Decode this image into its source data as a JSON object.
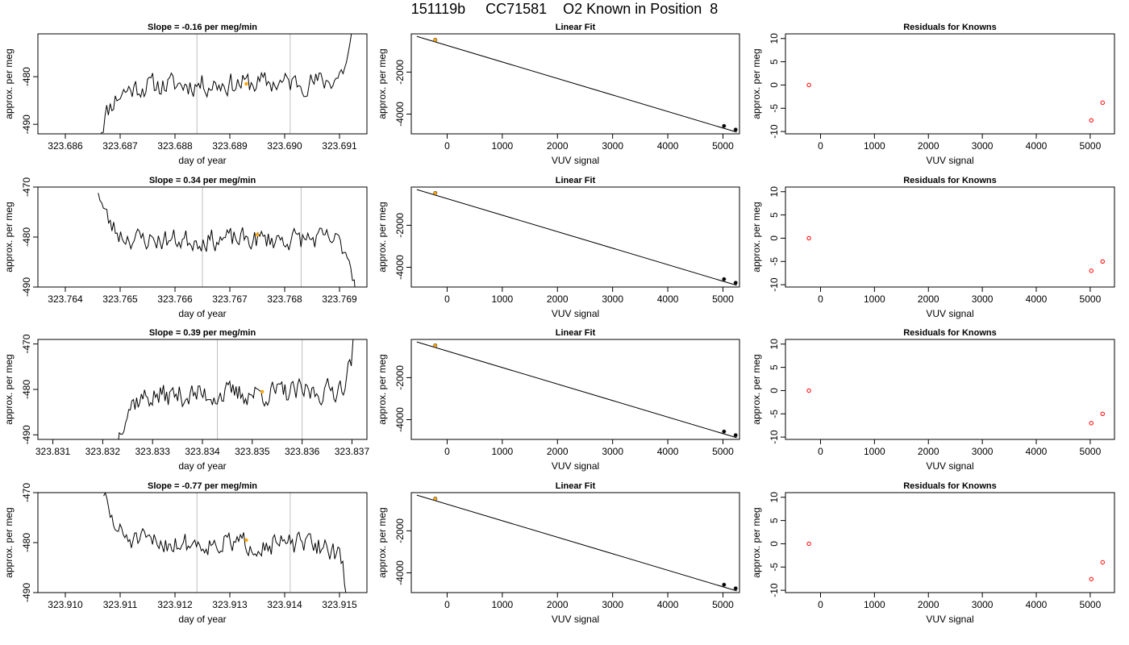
{
  "figure_title": "151119b     CC71581    O2 Known in Position  8",
  "colors": {
    "line": "#000000",
    "gridline": "#bebebe",
    "marker_mean": "#ffa500",
    "residual": "#ff0000",
    "fit_point": "#000000"
  },
  "chart_data": [
    {
      "type": "line",
      "panel": "timeseries",
      "row": 0,
      "title": "Slope =  -0.16  per meg/min",
      "xlabel": "day of year",
      "ylabel": "approx. per meg",
      "xlim": [
        323.6855,
        323.6915
      ],
      "ylim": [
        -492,
        -471
      ],
      "xticks": [
        "323.686",
        "323.687",
        "323.688",
        "323.689",
        "323.690",
        "323.691"
      ],
      "yticks": [
        {
          "value": -480,
          "label": "-480"
        },
        {
          "value": -490,
          "label": "-490"
        }
      ],
      "vlines": [
        323.6884,
        323.6901
      ],
      "series": [
        {
          "x_start": 323.6866,
          "x_end": 323.69125,
          "start": -493,
          "end": -470,
          "base": -481.5,
          "trend": 0.9,
          "noise": 2.2,
          "rise_in": 7,
          "rise_out": 4,
          "seed": 11
        }
      ],
      "mean_marker": {
        "x": 323.6893,
        "y": -481.5
      }
    },
    {
      "type": "line",
      "panel": "fit",
      "row": 0,
      "title": "Linear Fit",
      "xlabel": "VUV signal",
      "ylabel": "approx. per meg",
      "xlim": [
        -650,
        5300
      ],
      "ylim": [
        -4940,
        -180
      ],
      "xticks": [
        "0",
        "1000",
        "2000",
        "3000",
        "4000",
        "5000"
      ],
      "yticks": [
        {
          "value": -2000,
          "label": "-2000"
        },
        {
          "value": -4000,
          "label": "-4000"
        }
      ],
      "fit_line": {
        "x": [
          -550,
          5250
        ],
        "y": [
          -300,
          -4860
        ]
      },
      "points": [
        {
          "x": -215,
          "y": -470,
          "color": "orange"
        },
        {
          "x": 5020,
          "y": -4565,
          "color": "black"
        },
        {
          "x": 5230,
          "y": -4740,
          "color": "black"
        }
      ]
    },
    {
      "type": "scatter",
      "panel": "residuals",
      "row": 0,
      "title": "Residuals for Knowns",
      "xlabel": "VUV signal",
      "ylabel": "approx. per meg",
      "xlim": [
        -650,
        5450
      ],
      "ylim": [
        -10.5,
        11
      ],
      "xticks": [
        "0",
        "1000",
        "2000",
        "3000",
        "4000",
        "5000"
      ],
      "yticks": [
        {
          "value": 10,
          "label": "10"
        },
        {
          "value": 5,
          "label": "5"
        },
        {
          "value": 0,
          "label": "0"
        },
        {
          "value": -5,
          "label": "-5"
        },
        {
          "value": -10,
          "label": "-10"
        }
      ],
      "points": [
        {
          "x": -215,
          "y": 0
        },
        {
          "x": 5020,
          "y": -7.6
        },
        {
          "x": 5230,
          "y": -3.8
        }
      ]
    },
    {
      "type": "line",
      "panel": "timeseries",
      "row": 1,
      "title": "Slope =  0.34  per meg/min",
      "xlabel": "day of year",
      "ylabel": "approx. per meg",
      "xlim": [
        323.7635,
        323.7695
      ],
      "ylim": [
        -490,
        -470
      ],
      "xticks": [
        "323.764",
        "323.765",
        "323.766",
        "323.767",
        "323.768",
        "323.769"
      ],
      "yticks": [
        {
          "value": -470,
          "label": "-470"
        },
        {
          "value": -480,
          "label": "-480"
        },
        {
          "value": -490,
          "label": "-490"
        }
      ],
      "vlines": [
        323.7665,
        323.7683
      ],
      "series": [
        {
          "x_start": 323.7646,
          "x_end": 323.7693,
          "start": -470,
          "end": -491,
          "base": -480.5,
          "trend": 0.3,
          "noise": 2.0,
          "rise_in": 6,
          "rise_out": 4,
          "seed": 23
        }
      ],
      "mean_marker": {
        "x": 323.7675,
        "y": -479.5
      }
    },
    {
      "type": "line",
      "panel": "fit",
      "row": 1,
      "title": "Linear Fit",
      "xlabel": "VUV signal",
      "ylabel": "approx. per meg",
      "xlim": [
        -650,
        5300
      ],
      "ylim": [
        -4940,
        -180
      ],
      "xticks": [
        "0",
        "1000",
        "2000",
        "3000",
        "4000",
        "5000"
      ],
      "yticks": [
        {
          "value": -2000,
          "label": "-2000"
        },
        {
          "value": -4000,
          "label": "-4000"
        }
      ],
      "fit_line": {
        "x": [
          -550,
          5250
        ],
        "y": [
          -300,
          -4860
        ]
      },
      "points": [
        {
          "x": -215,
          "y": -470,
          "color": "orange"
        },
        {
          "x": 5020,
          "y": -4565,
          "color": "black"
        },
        {
          "x": 5230,
          "y": -4740,
          "color": "black"
        }
      ]
    },
    {
      "type": "scatter",
      "panel": "residuals",
      "row": 1,
      "title": "Residuals for Knowns",
      "xlabel": "VUV signal",
      "ylabel": "approx. per meg",
      "xlim": [
        -650,
        5450
      ],
      "ylim": [
        -10.5,
        11
      ],
      "xticks": [
        "0",
        "1000",
        "2000",
        "3000",
        "4000",
        "5000"
      ],
      "yticks": [
        {
          "value": 10,
          "label": "10"
        },
        {
          "value": 5,
          "label": "5"
        },
        {
          "value": 0,
          "label": "0"
        },
        {
          "value": -5,
          "label": "-5"
        },
        {
          "value": -10,
          "label": "-10"
        }
      ],
      "points": [
        {
          "x": -215,
          "y": 0
        },
        {
          "x": 5020,
          "y": -7.0
        },
        {
          "x": 5230,
          "y": -5.0
        }
      ]
    },
    {
      "type": "line",
      "panel": "timeseries",
      "row": 2,
      "title": "Slope =  0.39  per meg/min",
      "xlabel": "day of year",
      "ylabel": "approx. per meg",
      "xlim": [
        323.8307,
        323.8373
      ],
      "ylim": [
        -491,
        -469
      ],
      "xticks": [
        "323.831",
        "323.832",
        "323.833",
        "323.834",
        "323.835",
        "323.836",
        "323.837"
      ],
      "yticks": [
        {
          "value": -470,
          "label": "-470"
        },
        {
          "value": -480,
          "label": "-480"
        },
        {
          "value": -490,
          "label": "-490"
        }
      ],
      "vlines": [
        323.8343,
        323.836
      ],
      "series": [
        {
          "x_start": 323.8323,
          "x_end": 323.83705,
          "start": -491,
          "end": -469,
          "base": -481,
          "trend": 1.2,
          "noise": 2.4,
          "rise_in": 5,
          "rise_out": 4,
          "seed": 37
        }
      ],
      "mean_marker": {
        "x": 323.8352,
        "y": -480.5
      }
    },
    {
      "type": "line",
      "panel": "fit",
      "row": 2,
      "title": "Linear Fit",
      "xlabel": "VUV signal",
      "ylabel": "approx. per meg",
      "xlim": [
        -650,
        5300
      ],
      "ylim": [
        -4940,
        -180
      ],
      "xticks": [
        "0",
        "1000",
        "2000",
        "3000",
        "4000",
        "5000"
      ],
      "yticks": [
        {
          "value": -2000,
          "label": "-2000"
        },
        {
          "value": -4000,
          "label": "-4000"
        }
      ],
      "fit_line": {
        "x": [
          -550,
          5250
        ],
        "y": [
          -300,
          -4860
        ]
      },
      "points": [
        {
          "x": -215,
          "y": -470,
          "color": "orange"
        },
        {
          "x": 5020,
          "y": -4565,
          "color": "black"
        },
        {
          "x": 5230,
          "y": -4740,
          "color": "black"
        }
      ]
    },
    {
      "type": "scatter",
      "panel": "residuals",
      "row": 2,
      "title": "Residuals for Knowns",
      "xlabel": "VUV signal",
      "ylabel": "approx. per meg",
      "xlim": [
        -650,
        5450
      ],
      "ylim": [
        -10.5,
        11
      ],
      "xticks": [
        "0",
        "1000",
        "2000",
        "3000",
        "4000",
        "5000"
      ],
      "yticks": [
        {
          "value": 10,
          "label": "10"
        },
        {
          "value": 5,
          "label": "5"
        },
        {
          "value": 0,
          "label": "0"
        },
        {
          "value": -5,
          "label": "-5"
        },
        {
          "value": -10,
          "label": "-10"
        }
      ],
      "points": [
        {
          "x": -215,
          "y": 0
        },
        {
          "x": 5020,
          "y": -7.0
        },
        {
          "x": 5230,
          "y": -5.0
        }
      ]
    },
    {
      "type": "line",
      "panel": "timeseries",
      "row": 3,
      "title": "Slope =  -0.77  per meg/min",
      "xlabel": "day of year",
      "ylabel": "approx. per meg",
      "xlim": [
        323.9095,
        323.9155
      ],
      "ylim": [
        -490,
        -470
      ],
      "xticks": [
        "323.910",
        "323.911",
        "323.912",
        "323.913",
        "323.914",
        "323.915"
      ],
      "yticks": [
        {
          "value": -470,
          "label": "-470"
        },
        {
          "value": -480,
          "label": "-480"
        },
        {
          "value": -490,
          "label": "-490"
        }
      ],
      "vlines": [
        323.9124,
        323.9141
      ],
      "series": [
        {
          "x_start": 323.9107,
          "x_end": 323.91515,
          "start": -470,
          "end": -491,
          "base": -480.2,
          "trend": -0.6,
          "noise": 2.0,
          "rise_in": 6,
          "rise_out": 4,
          "seed": 51
        }
      ],
      "mean_marker": {
        "x": 323.9133,
        "y": -479.5
      }
    },
    {
      "type": "line",
      "panel": "fit",
      "row": 3,
      "title": "Linear Fit",
      "xlabel": "VUV signal",
      "ylabel": "approx. per meg",
      "xlim": [
        -650,
        5300
      ],
      "ylim": [
        -4940,
        -180
      ],
      "xticks": [
        "0",
        "1000",
        "2000",
        "3000",
        "4000",
        "5000"
      ],
      "yticks": [
        {
          "value": -2000,
          "label": "-2000"
        },
        {
          "value": -4000,
          "label": "-4000"
        }
      ],
      "fit_line": {
        "x": [
          -550,
          5250
        ],
        "y": [
          -300,
          -4860
        ]
      },
      "points": [
        {
          "x": -215,
          "y": -470,
          "color": "orange"
        },
        {
          "x": 5020,
          "y": -4565,
          "color": "black"
        },
        {
          "x": 5230,
          "y": -4740,
          "color": "black"
        }
      ]
    },
    {
      "type": "scatter",
      "panel": "residuals",
      "row": 3,
      "title": "Residuals for Knowns",
      "xlabel": "VUV signal",
      "ylabel": "approx. per meg",
      "xlim": [
        -650,
        5450
      ],
      "ylim": [
        -10.5,
        11
      ],
      "xticks": [
        "0",
        "1000",
        "2000",
        "3000",
        "4000",
        "5000"
      ],
      "yticks": [
        {
          "value": 10,
          "label": "10"
        },
        {
          "value": 5,
          "label": "5"
        },
        {
          "value": 0,
          "label": "0"
        },
        {
          "value": -5,
          "label": "-5"
        },
        {
          "value": -10,
          "label": "-10"
        }
      ],
      "points": [
        {
          "x": -215,
          "y": 0
        },
        {
          "x": 5020,
          "y": -7.6
        },
        {
          "x": 5230,
          "y": -4.0
        }
      ]
    }
  ]
}
